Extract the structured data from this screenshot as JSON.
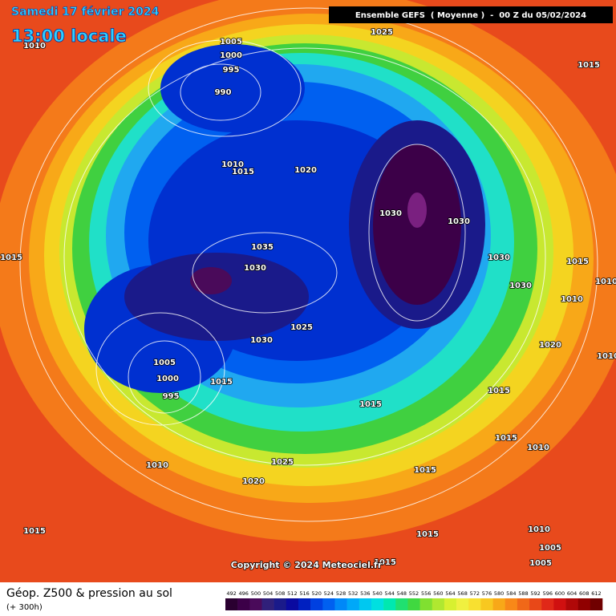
{
  "header": {
    "date": "Samedi 17 février 2024",
    "time": "13:00 locale",
    "run": "Ensemble GEFS  ( Moyenne )  -  00 Z du 05/02/2024"
  },
  "copyright": "Copyright © 2024 Meteociel.fr",
  "footer": {
    "title": "Géop. Z500 & pression au sol",
    "lead": "(+ 300h)"
  },
  "isobar_labels": [
    1005,
    1000,
    995,
    990,
    1010,
    1015,
    1020,
    1025,
    1010,
    1015,
    1030,
    1030,
    1015,
    1035,
    1030,
    1030,
    1015,
    1030,
    1010,
    1010,
    1025,
    1030,
    1020,
    1010,
    1005,
    1000,
    995,
    1015,
    1015,
    1015,
    1015,
    1010,
    1025,
    1010,
    1015,
    1020,
    1015,
    1015,
    1010,
    1005,
    1015,
    1005
  ],
  "legend": {
    "labels": [
      492,
      496,
      500,
      504,
      508,
      512,
      516,
      520,
      524,
      528,
      532,
      536,
      540,
      544,
      548,
      552,
      556,
      560,
      564,
      568,
      572,
      576,
      580,
      584,
      588,
      592,
      596,
      600,
      604,
      608,
      612
    ],
    "colors": [
      "#2a0030",
      "#3c0048",
      "#4a0a5a",
      "#30207a",
      "#1a1a8a",
      "#0a0aa0",
      "#0020c0",
      "#0040e0",
      "#0060f0",
      "#0088f8",
      "#00a8f8",
      "#00c8f0",
      "#00e0e0",
      "#00e8b0",
      "#20e070",
      "#40d840",
      "#80e030",
      "#b0e830",
      "#d8f030",
      "#f0f040",
      "#f8e030",
      "#f8c820",
      "#f8a818",
      "#f88818",
      "#f06818",
      "#e84818",
      "#e02818",
      "#d01010",
      "#b00808",
      "#900000",
      "#700000"
    ]
  }
}
